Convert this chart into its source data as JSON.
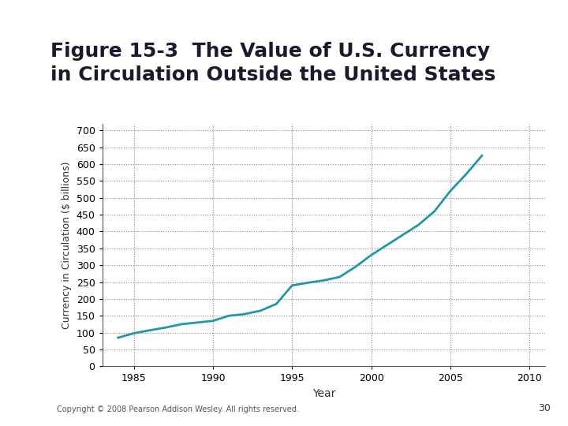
{
  "title_line1": "Figure 15-3  The Value of U.S. Currency",
  "title_line2": "in Circulation Outside the United States",
  "xlabel": "Year",
  "ylabel": "Currency in Circulation ($ billions)",
  "copyright": "Copyright © 2008 Pearson Addison Wesley. All rights reserved.",
  "page_number": "30",
  "line_color": "#2196a8",
  "background_color": "#ffffff",
  "xlim": [
    1983,
    2011
  ],
  "ylim": [
    0,
    720
  ],
  "yticks": [
    0,
    50,
    100,
    150,
    200,
    250,
    300,
    350,
    400,
    450,
    500,
    550,
    600,
    650,
    700
  ],
  "xticks": [
    1985,
    1990,
    1995,
    2000,
    2005,
    2010
  ],
  "years": [
    1984,
    1985,
    1986,
    1987,
    1988,
    1989,
    1990,
    1991,
    1992,
    1993,
    1994,
    1995,
    1996,
    1997,
    1998,
    1999,
    2000,
    2001,
    2002,
    2003,
    2004,
    2005,
    2006,
    2007
  ],
  "values": [
    85,
    98,
    107,
    115,
    125,
    130,
    135,
    150,
    155,
    165,
    185,
    240,
    248,
    255,
    265,
    295,
    330,
    360,
    390,
    420,
    460,
    520,
    570,
    625
  ]
}
